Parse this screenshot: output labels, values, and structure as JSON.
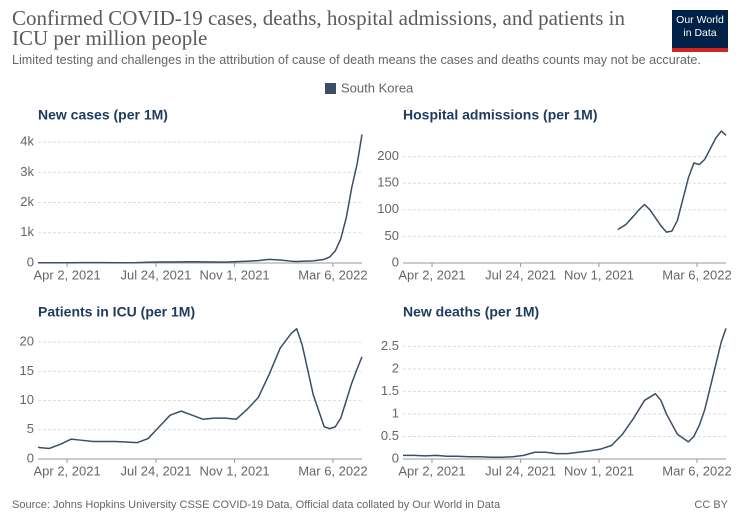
{
  "header": {
    "title": "Confirmed COVID-19 cases, deaths, hospital admissions, and patients in ICU per million people",
    "subtitle": "Limited testing and challenges in the attribution of cause of death means the cases and deaths counts may not be accurate.",
    "logo": [
      "Our World",
      "in Data"
    ]
  },
  "legend": {
    "label": "South Korea",
    "color": "#3c4e66"
  },
  "footer": {
    "source": "Source: Johns Hopkins University CSSE COVID-19 Data, Official data collated by Our World in Data",
    "license": "CC BY"
  },
  "chart_data": [
    {
      "type": "line",
      "title": "New cases (per 1M)",
      "color": "#3c4e66",
      "x": [
        "2021-02-24",
        "2021-03-10",
        "2021-03-24",
        "2021-04-07",
        "2021-04-21",
        "2021-05-05",
        "2021-05-19",
        "2021-06-02",
        "2021-06-16",
        "2021-06-30",
        "2021-07-14",
        "2021-07-28",
        "2021-08-11",
        "2021-08-25",
        "2021-09-08",
        "2021-09-22",
        "2021-10-06",
        "2021-10-20",
        "2021-11-03",
        "2021-11-17",
        "2021-12-01",
        "2021-12-15",
        "2021-12-29",
        "2022-01-12",
        "2022-01-19",
        "2022-01-26",
        "2022-02-09",
        "2022-02-23",
        "2022-03-02",
        "2022-03-09",
        "2022-03-16",
        "2022-03-23",
        "2022-03-30",
        "2022-04-06",
        "2022-04-12"
      ],
      "values": [
        10,
        10,
        9,
        10,
        12,
        12,
        11,
        10,
        10,
        12,
        25,
        35,
        35,
        38,
        40,
        38,
        35,
        30,
        45,
        60,
        80,
        120,
        100,
        60,
        50,
        60,
        70,
        120,
        200,
        400,
        800,
        1500,
        2500,
        3300,
        4250
      ],
      "xlim": [
        "2021-02-24",
        "2022-04-12"
      ],
      "xticks": [
        {
          "value": "2021-04-02",
          "label": "Apr 2, 2021"
        },
        {
          "value": "2021-07-24",
          "label": "Jul 24, 2021"
        },
        {
          "value": "2021-11-01",
          "label": "Nov 1, 2021"
        },
        {
          "value": "2022-03-06",
          "label": "Mar 6, 2022"
        }
      ],
      "ylim": [
        0,
        4400
      ],
      "yticks": [
        0,
        {
          "value": 1000,
          "label": "1k"
        },
        {
          "value": 2000,
          "label": "2k"
        },
        {
          "value": 3000,
          "label": "3k"
        },
        {
          "value": 4000,
          "label": "4k"
        }
      ],
      "grid": true
    },
    {
      "type": "line",
      "title": "Hospital admissions (per 1M)",
      "color": "#3c4e66",
      "x": [
        "2021-11-25",
        "2021-12-05",
        "2021-12-15",
        "2021-12-22",
        "2021-12-29",
        "2022-01-05",
        "2022-01-12",
        "2022-01-19",
        "2022-01-26",
        "2022-02-02",
        "2022-02-09",
        "2022-02-16",
        "2022-02-23",
        "2022-03-02",
        "2022-03-09",
        "2022-03-16",
        "2022-03-23",
        "2022-03-30",
        "2022-04-06",
        "2022-04-12"
      ],
      "values": [
        63,
        72,
        88,
        100,
        110,
        100,
        85,
        70,
        58,
        60,
        80,
        120,
        160,
        188,
        185,
        195,
        215,
        235,
        248,
        240
      ],
      "xlim": [
        "2021-02-24",
        "2022-04-12"
      ],
      "xticks": [
        {
          "value": "2021-04-02",
          "label": "Apr 2, 2021"
        },
        {
          "value": "2021-07-24",
          "label": "Jul 24, 2021"
        },
        {
          "value": "2021-11-01",
          "label": "Nov 1, 2021"
        },
        {
          "value": "2022-03-06",
          "label": "Mar 6, 2022"
        }
      ],
      "ylim": [
        0,
        250
      ],
      "yticks": [
        0,
        50,
        100,
        150,
        200
      ],
      "grid": true
    },
    {
      "type": "line",
      "title": "Patients in ICU (per 1M)",
      "color": "#3c4e66",
      "x": [
        "2021-02-24",
        "2021-03-10",
        "2021-03-24",
        "2021-04-07",
        "2021-04-21",
        "2021-05-05",
        "2021-05-19",
        "2021-06-02",
        "2021-06-16",
        "2021-06-30",
        "2021-07-14",
        "2021-07-28",
        "2021-08-11",
        "2021-08-25",
        "2021-09-08",
        "2021-09-22",
        "2021-10-06",
        "2021-10-20",
        "2021-11-03",
        "2021-11-17",
        "2021-12-01",
        "2021-12-15",
        "2021-12-29",
        "2022-01-12",
        "2022-01-19",
        "2022-01-26",
        "2022-02-09",
        "2022-02-23",
        "2022-03-02",
        "2022-03-09",
        "2022-03-16",
        "2022-03-23",
        "2022-03-30",
        "2022-04-06",
        "2022-04-12"
      ],
      "values": [
        2.0,
        1.8,
        2.5,
        3.4,
        3.2,
        3.0,
        3.0,
        3.0,
        2.9,
        2.8,
        3.5,
        5.5,
        7.5,
        8.2,
        7.5,
        6.8,
        7.0,
        7.0,
        6.8,
        8.5,
        10.5,
        14.5,
        19,
        21.5,
        22.3,
        19.5,
        11,
        5.5,
        5.2,
        5.5,
        7,
        10,
        13,
        15.5,
        17.5
      ],
      "xlim": [
        "2021-02-24",
        "2022-04-12"
      ],
      "xticks": [
        {
          "value": "2021-04-02",
          "label": "Apr 2, 2021"
        },
        {
          "value": "2021-07-24",
          "label": "Jul 24, 2021"
        },
        {
          "value": "2021-11-01",
          "label": "Nov 1, 2021"
        },
        {
          "value": "2022-03-06",
          "label": "Mar 6, 2022"
        }
      ],
      "ylim": [
        0,
        22.6
      ],
      "yticks": [
        0,
        5,
        10,
        15,
        20
      ],
      "grid": true
    },
    {
      "type": "line",
      "title": "New deaths (per 1M)",
      "color": "#3c4e66",
      "x": [
        "2021-02-24",
        "2021-03-10",
        "2021-03-24",
        "2021-04-07",
        "2021-04-21",
        "2021-05-05",
        "2021-05-19",
        "2021-06-02",
        "2021-06-16",
        "2021-06-30",
        "2021-07-14",
        "2021-07-28",
        "2021-08-11",
        "2021-08-25",
        "2021-09-08",
        "2021-09-22",
        "2021-10-06",
        "2021-10-20",
        "2021-11-03",
        "2021-11-17",
        "2021-12-01",
        "2021-12-15",
        "2021-12-29",
        "2022-01-12",
        "2022-01-19",
        "2022-01-26",
        "2022-02-09",
        "2022-02-23",
        "2022-03-02",
        "2022-03-09",
        "2022-03-16",
        "2022-03-23",
        "2022-03-30",
        "2022-04-06",
        "2022-04-12"
      ],
      "values": [
        0.08,
        0.08,
        0.07,
        0.08,
        0.06,
        0.06,
        0.05,
        0.05,
        0.04,
        0.04,
        0.05,
        0.08,
        0.15,
        0.15,
        0.12,
        0.12,
        0.15,
        0.18,
        0.22,
        0.3,
        0.55,
        0.9,
        1.3,
        1.45,
        1.3,
        1.0,
        0.55,
        0.38,
        0.5,
        0.75,
        1.1,
        1.6,
        2.1,
        2.6,
        2.9
      ],
      "xlim": [
        "2021-02-24",
        "2022-04-12"
      ],
      "xticks": [
        {
          "value": "2021-04-02",
          "label": "Apr 2, 2021"
        },
        {
          "value": "2021-07-24",
          "label": "Jul 24, 2021"
        },
        {
          "value": "2021-11-01",
          "label": "Nov 1, 2021"
        },
        {
          "value": "2022-03-06",
          "label": "Mar 6, 2022"
        }
      ],
      "ylim": [
        0,
        2.93
      ],
      "yticks": [
        0,
        0.5,
        1,
        1.5,
        2,
        2.5
      ],
      "grid": true
    }
  ]
}
